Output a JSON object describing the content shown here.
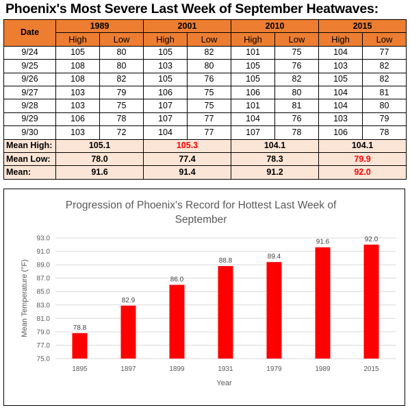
{
  "title": "Phoenix's Most Severe Last Week of September Heatwaves:",
  "table": {
    "date_header": "Date",
    "years": [
      "1989",
      "2001",
      "2010",
      "2015"
    ],
    "sub_headers": [
      "High",
      "Low"
    ],
    "rows": [
      {
        "date": "9/24",
        "values": [
          "105",
          "80",
          "105",
          "82",
          "101",
          "75",
          "104",
          "77"
        ]
      },
      {
        "date": "9/25",
        "values": [
          "108",
          "80",
          "103",
          "80",
          "105",
          "76",
          "103",
          "82"
        ]
      },
      {
        "date": "9/26",
        "values": [
          "108",
          "82",
          "105",
          "76",
          "105",
          "82",
          "105",
          "82"
        ]
      },
      {
        "date": "9/27",
        "values": [
          "103",
          "79",
          "106",
          "75",
          "106",
          "80",
          "104",
          "81"
        ]
      },
      {
        "date": "9/28",
        "values": [
          "103",
          "75",
          "107",
          "75",
          "101",
          "81",
          "104",
          "80"
        ]
      },
      {
        "date": "9/29",
        "values": [
          "106",
          "78",
          "107",
          "77",
          "104",
          "76",
          "103",
          "79"
        ]
      },
      {
        "date": "9/30",
        "values": [
          "103",
          "72",
          "104",
          "77",
          "107",
          "78",
          "106",
          "78"
        ]
      }
    ],
    "summary": [
      {
        "label": "Mean High:",
        "values": [
          "105.1",
          "105.3",
          "104.1",
          "104.1"
        ],
        "highlight": [
          false,
          true,
          false,
          false
        ]
      },
      {
        "label": "Mean Low:",
        "values": [
          "78.0",
          "77.4",
          "78.3",
          "79.9"
        ],
        "highlight": [
          false,
          false,
          false,
          true
        ]
      },
      {
        "label": "Mean:",
        "values": [
          "91.6",
          "91.4",
          "91.2",
          "92.0"
        ],
        "highlight": [
          false,
          false,
          false,
          true
        ]
      }
    ]
  },
  "colors": {
    "header_orange": "#ec7d31",
    "summary_fill": "#fbe5d6",
    "highlight_red": "#ff0000",
    "bar_red": "#ff0000"
  },
  "chart_data": {
    "type": "bar",
    "title": "Progression of Phoenix's Record for Hottest Last Week of September",
    "title_lines": [
      "Progression of Phoenix's Record for Hottest Last Week of",
      "September"
    ],
    "categories": [
      "1895",
      "1897",
      "1899",
      "1931",
      "1979",
      "1989",
      "2015"
    ],
    "values": [
      78.8,
      82.9,
      86.0,
      88.8,
      89.4,
      91.6,
      92.0
    ],
    "data_labels": [
      "78.8",
      "82.9",
      "86.0",
      "88.8",
      "89.4",
      "91.6",
      "92.0"
    ],
    "xlabel": "Year",
    "ylabel": "Mean Temperature (°F)",
    "ylim": [
      75.0,
      93.0
    ],
    "yticks": [
      "75.0",
      "77.0",
      "79.0",
      "81.0",
      "83.0",
      "85.0",
      "87.0",
      "89.0",
      "91.0",
      "93.0"
    ],
    "grid": true,
    "legend": "none"
  }
}
